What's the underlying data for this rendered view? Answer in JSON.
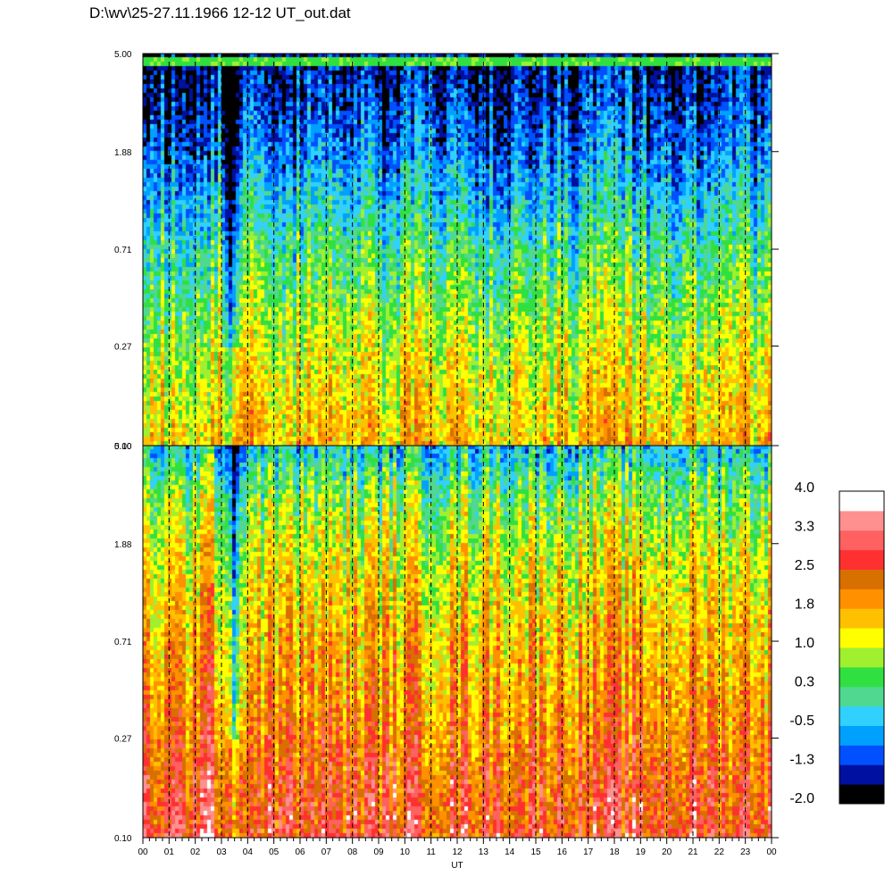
{
  "title": "D:\\wv\\25-27.11.1966  12-12 UT_out.dat",
  "chart_data": [
    {
      "type": "heatmap",
      "panel": "upper",
      "x_unit": "UT",
      "x_range": [
        0,
        24
      ],
      "y_ticks": [
        "5.00",
        "1.88",
        "0.71",
        "0.27",
        "0.10"
      ],
      "y_range": [
        0.1,
        5.0
      ],
      "y_scale": "log",
      "value_profile_bottom_to_top": [
        1.6,
        1.3,
        1.0,
        0.6,
        0.2,
        -0.3,
        -0.8,
        -1.2,
        -1.5
      ],
      "features": [
        {
          "type": "depression",
          "x": 3.5,
          "depth": 1.5
        },
        {
          "type": "bright_band",
          "y": 4.6,
          "value": 0.5
        }
      ]
    },
    {
      "type": "heatmap",
      "panel": "lower",
      "x_unit": "UT",
      "x_range": [
        0,
        24
      ],
      "y_ticks": [
        "5.00",
        "1.88",
        "0.71",
        "0.27",
        "0.10"
      ],
      "y_range": [
        0.1,
        5.0
      ],
      "y_scale": "log",
      "value_profile_bottom_to_top": [
        2.7,
        2.5,
        2.2,
        1.9,
        1.7,
        1.4,
        1.1,
        0.6,
        -0.3
      ],
      "features": [
        {
          "type": "depression",
          "x": 3.5,
          "depth": 1.6
        },
        {
          "type": "enhancement",
          "x": 2.3,
          "height": 0.4
        }
      ]
    }
  ],
  "x_tick_labels": [
    "00",
    "01",
    "02",
    "03",
    "04",
    "05",
    "06",
    "07",
    "08",
    "09",
    "10",
    "11",
    "12",
    "13",
    "14",
    "15",
    "16",
    "17",
    "18",
    "19",
    "20",
    "21",
    "22",
    "23",
    "00"
  ],
  "x_axis_label": "UT",
  "colorbar": {
    "labels": [
      "4.0",
      "3.3",
      "2.5",
      "1.8",
      "1.0",
      "0.3",
      "-0.5",
      "-1.3",
      "-2.0"
    ],
    "colors_bottom_to_top": [
      "#000000",
      "#0010a0",
      "#0050ff",
      "#00a0ff",
      "#30d0ff",
      "#50d890",
      "#30e040",
      "#a0f030",
      "#ffff00",
      "#ffc000",
      "#ff9000",
      "#d87000",
      "#ff3030",
      "#ff6060",
      "#ff9090",
      "#ffffff"
    ]
  }
}
